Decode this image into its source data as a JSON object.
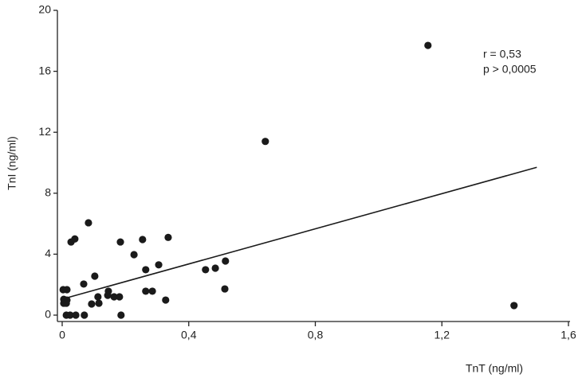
{
  "chart_data": {
    "type": "scatter",
    "x_label": "TnT (ng/ml)",
    "y_label": "TnI (ng/ml)",
    "annotations": [
      "r = 0,53",
      "p > 0,0005"
    ],
    "color": "#1a1a1a",
    "x": [
      1.156,
      0.642,
      1.428,
      0.083,
      0.028,
      0.04,
      0.184,
      0.254,
      0.335,
      0.227,
      0.305,
      0.264,
      0.103,
      0.068,
      0.453,
      0.484,
      0.516,
      0.514,
      0.146,
      0.144,
      0.164,
      0.181,
      0.264,
      0.285,
      0.327,
      0.113,
      0.116,
      0.093,
      0.003,
      0.015,
      0.005,
      0.015,
      0.005,
      0.013,
      0.013,
      0.025,
      0.043,
      0.07,
      0.186
    ],
    "values": [
      17.7,
      11.4,
      0.63,
      6.06,
      4.8,
      5.0,
      4.8,
      4.96,
      5.1,
      3.97,
      3.3,
      2.98,
      2.56,
      2.04,
      2.98,
      3.08,
      3.55,
      1.72,
      1.57,
      1.3,
      1.2,
      1.2,
      1.57,
      1.57,
      0.99,
      1.2,
      0.78,
      0.73,
      1.67,
      1.67,
      1.04,
      0.99,
      0.78,
      0.78,
      0,
      0,
      0,
      0,
      0
    ],
    "trendline": {
      "x": [
        0,
        1.5
      ],
      "y": [
        1.05,
        9.7
      ]
    },
    "xlim": [
      0,
      1.6
    ],
    "xticks": [
      0,
      {
        "value": 0.4,
        "label": "0,4"
      },
      {
        "value": 0.8,
        "label": "0,8"
      },
      {
        "value": 1.2,
        "label": "1,2"
      },
      {
        "value": 1.6,
        "label": "1,6"
      }
    ],
    "ylim": [
      0,
      20
    ],
    "yticks": [
      0,
      4,
      8,
      12,
      16,
      20
    ]
  }
}
